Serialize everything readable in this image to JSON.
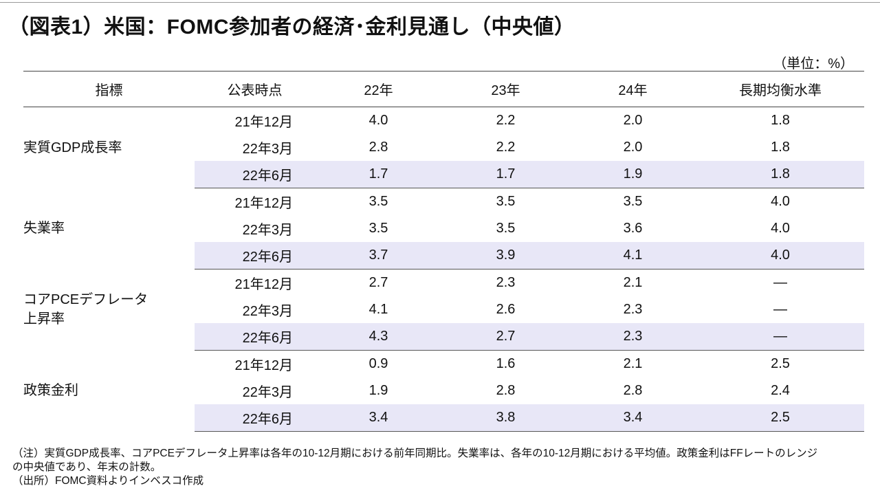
{
  "title": "（図表1）米国：FOMC参加者の経済･金利見通し（中央値）",
  "unit": "（単位：%）",
  "table": {
    "headers": [
      "指標",
      "公表時点",
      "22年",
      "23年",
      "24年",
      "長期均衡水準"
    ],
    "groups": [
      {
        "indicator": "実質GDP成長率",
        "rows": [
          {
            "period": "21年12月",
            "v": [
              "4.0",
              "2.2",
              "2.0",
              "1.8"
            ]
          },
          {
            "period": "22年3月",
            "v": [
              "2.8",
              "2.2",
              "2.0",
              "1.8"
            ]
          },
          {
            "period": "22年6月",
            "v": [
              "1.7",
              "1.7",
              "1.9",
              "1.8"
            ]
          }
        ]
      },
      {
        "indicator": "失業率",
        "rows": [
          {
            "period": "21年12月",
            "v": [
              "3.5",
              "3.5",
              "3.5",
              "4.0"
            ]
          },
          {
            "period": "22年3月",
            "v": [
              "3.5",
              "3.5",
              "3.6",
              "4.0"
            ]
          },
          {
            "period": "22年6月",
            "v": [
              "3.7",
              "3.9",
              "4.1",
              "4.0"
            ]
          }
        ]
      },
      {
        "indicator_line1": "コアPCEデフレータ",
        "indicator_line2": "上昇率",
        "rows": [
          {
            "period": "21年12月",
            "v": [
              "2.7",
              "2.3",
              "2.1",
              "―"
            ]
          },
          {
            "period": "22年3月",
            "v": [
              "4.1",
              "2.6",
              "2.3",
              "―"
            ]
          },
          {
            "period": "22年6月",
            "v": [
              "4.3",
              "2.7",
              "2.3",
              "―"
            ]
          }
        ]
      },
      {
        "indicator": "政策金利",
        "rows": [
          {
            "period": "21年12月",
            "v": [
              "0.9",
              "1.6",
              "2.1",
              "2.5"
            ]
          },
          {
            "period": "22年3月",
            "v": [
              "1.9",
              "2.8",
              "2.8",
              "2.4"
            ]
          },
          {
            "period": "22年6月",
            "v": [
              "3.4",
              "3.8",
              "3.4",
              "2.5"
            ]
          }
        ]
      }
    ]
  },
  "notes": {
    "line1": "（注）実質GDP成長率、コアPCEデフレータ上昇率は各年の10-12月期における前年同期比。失業率は、各年の10-12月期における平均値。政策金利はFFレートのレンジ",
    "line2": "の中央値であり、年末の計数。",
    "source": "（出所）FOMC資料よりインベスコ作成"
  },
  "colors": {
    "highlight": "#e8e7f7",
    "rule": "#444444"
  }
}
